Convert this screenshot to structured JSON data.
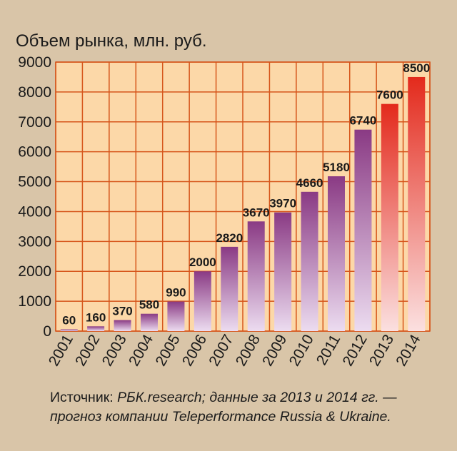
{
  "chart_data": {
    "type": "bar",
    "title": "",
    "ylabel": "Объем рынка, млн. руб.",
    "xlabel": "",
    "categories": [
      "2001",
      "2002",
      "2003",
      "2004",
      "2005",
      "2006",
      "2007",
      "2008",
      "2009",
      "2010",
      "2011",
      "2012",
      "2013",
      "2014"
    ],
    "values": [
      60,
      160,
      370,
      580,
      990,
      2000,
      2820,
      3670,
      3970,
      4660,
      5180,
      6740,
      7600,
      8500
    ],
    "data_labels": [
      "60",
      "160",
      "370",
      "580",
      "990",
      "2000",
      "2820",
      "3670",
      "3970",
      "4660",
      "5180",
      "6740",
      "7600",
      "8500"
    ],
    "forecast_categories": [
      "2013",
      "2014"
    ],
    "ylim": [
      0,
      9000
    ],
    "yticks": [
      "0",
      "1000",
      "2000",
      "3000",
      "4000",
      "5000",
      "6000",
      "7000",
      "8000",
      "9000"
    ],
    "grid": true,
    "legend": "none"
  },
  "source": {
    "lead": "Источник: ",
    "line1_rest": "РБК.research; данные за 2013 и 2014 гг. —",
    "line2": "прогноз компании Teleperformance Russia & Ukraine."
  },
  "colors": {
    "page_background": "#d9c5a8",
    "plot_background": "#fcd8a8",
    "grid": "#d6551a",
    "bar_top": "#8a3a84",
    "bar_bottom": "#ecdcf0",
    "forecast_top": "#e32a1c",
    "forecast_bottom": "#fbe0e0"
  }
}
